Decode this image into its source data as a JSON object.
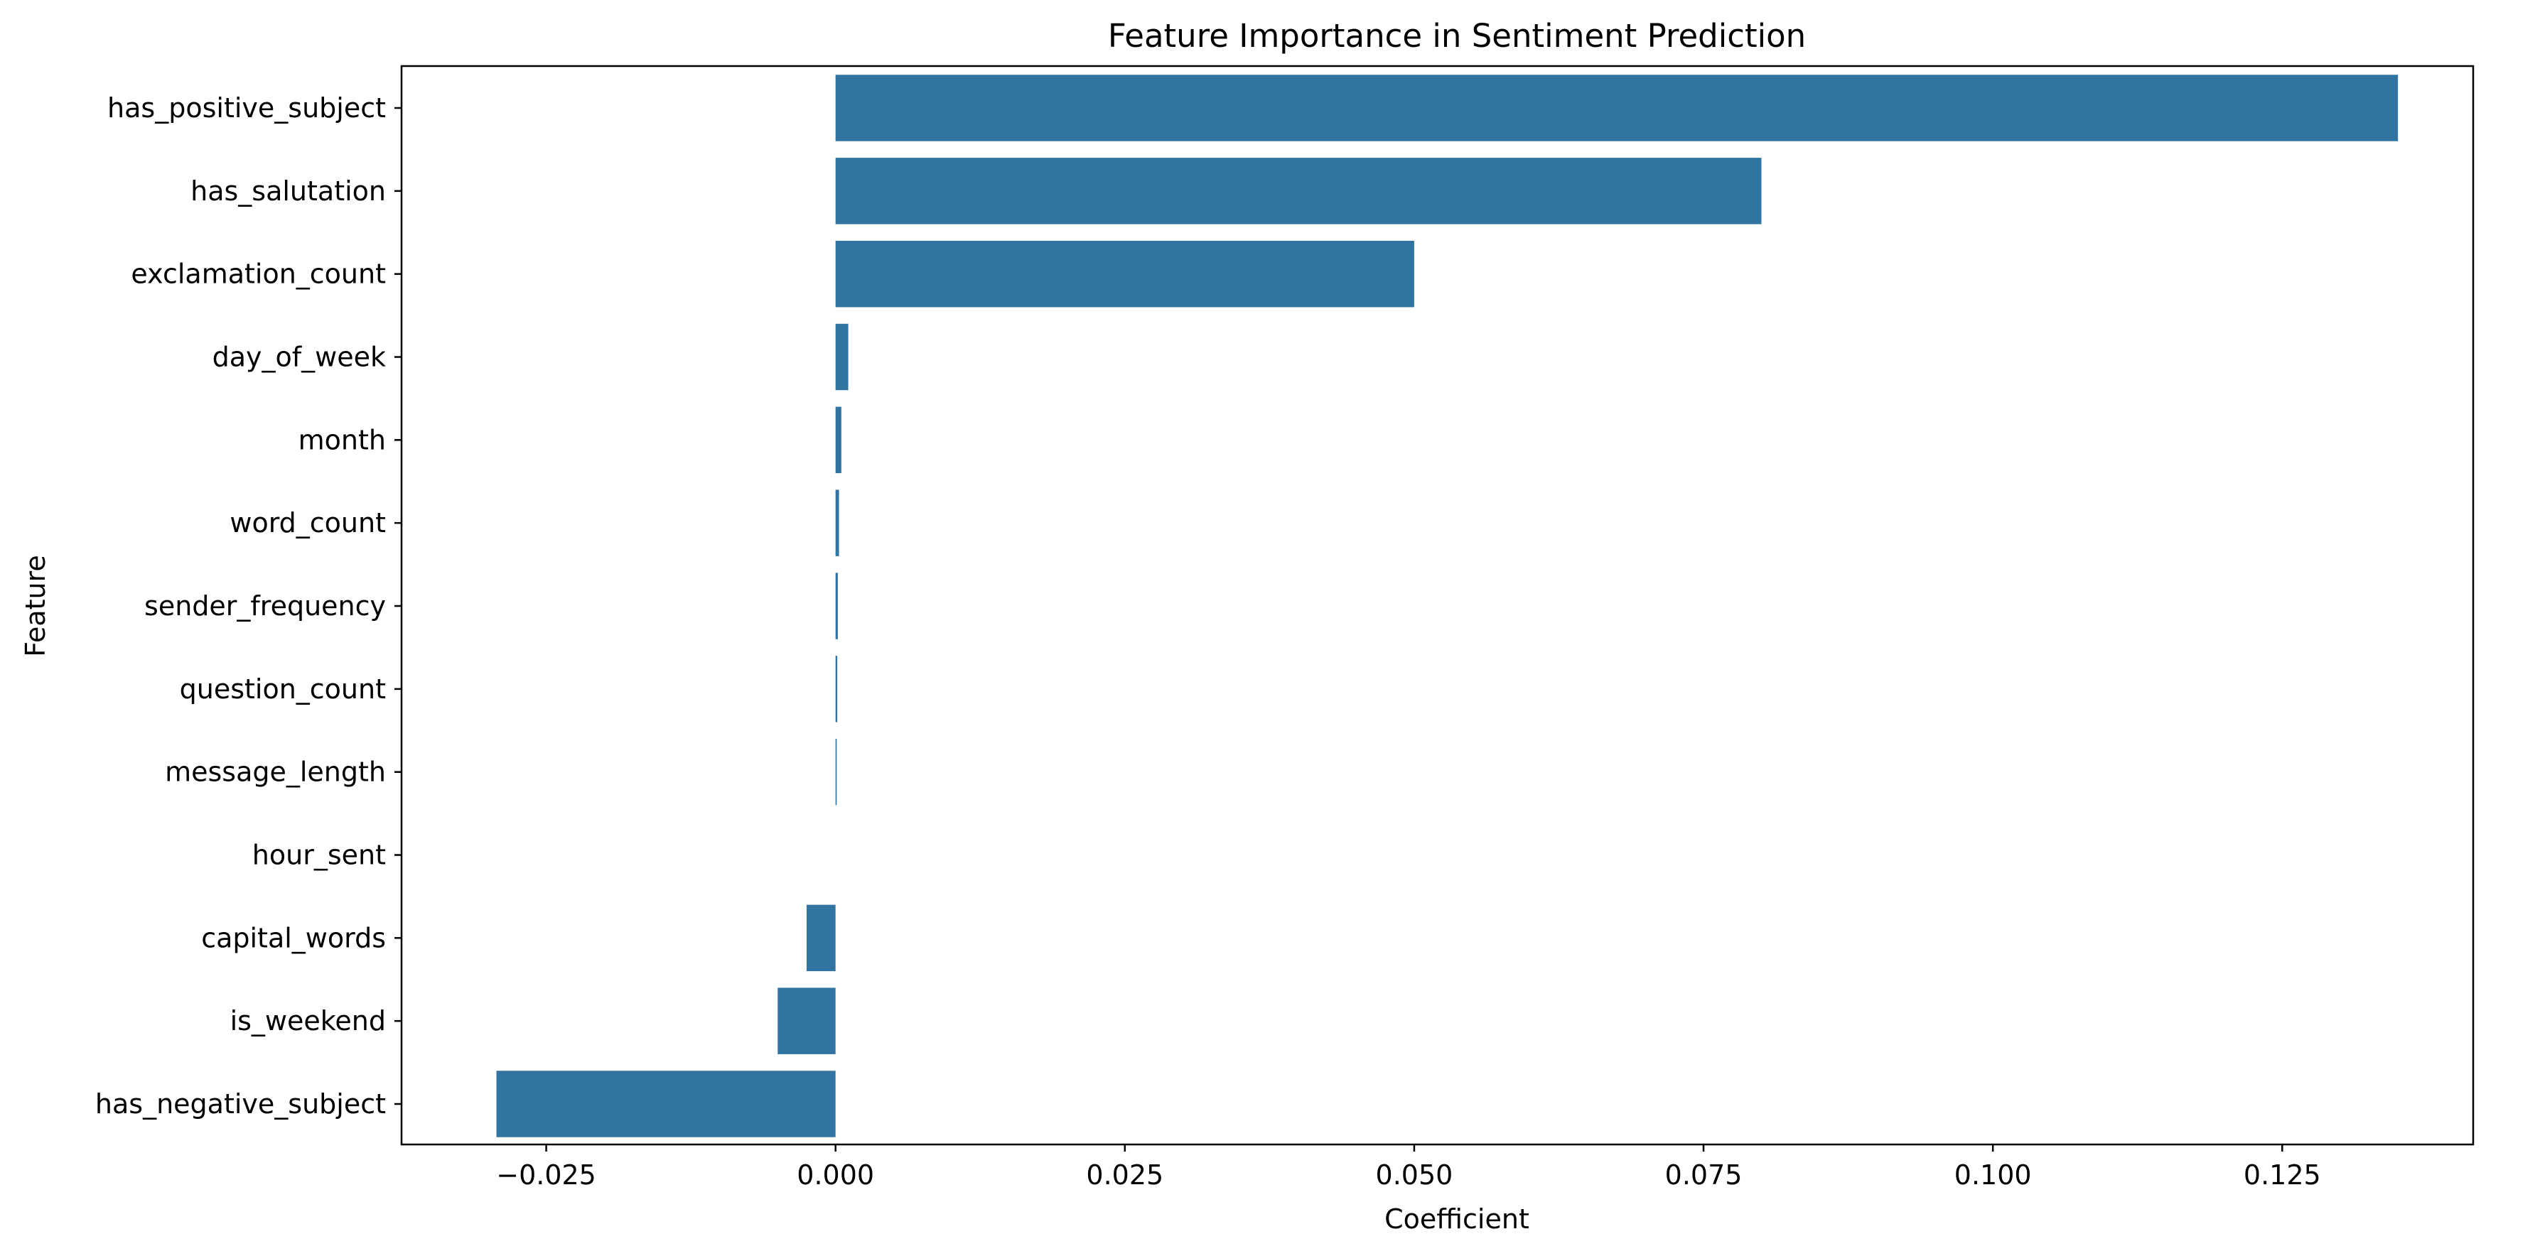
{
  "chart_data": {
    "type": "bar",
    "orientation": "horizontal",
    "title": "Feature Importance in Sentiment Prediction",
    "xlabel": "Coefficient",
    "ylabel": "Feature",
    "categories": [
      "has_positive_subject",
      "has_salutation",
      "exclamation_count",
      "day_of_week",
      "month",
      "word_count",
      "sender_frequency",
      "question_count",
      "message_length",
      "hour_sent",
      "capital_words",
      "is_weekend",
      "has_negative_subject"
    ],
    "values": [
      0.135,
      0.08,
      0.05,
      0.0011,
      0.0005,
      0.0003,
      0.0002,
      0.00015,
      0.0001,
      0.0,
      -0.0025,
      -0.005,
      -0.0293
    ],
    "xlim": [
      -0.0375,
      0.1415
    ],
    "xticks": [
      -0.025,
      0.0,
      0.025,
      0.05,
      0.075,
      0.1,
      0.125
    ],
    "xtick_labels": [
      "−0.025",
      "0.000",
      "0.025",
      "0.050",
      "0.075",
      "0.100",
      "0.125"
    ],
    "bar_color": "#3274a1",
    "grid": false,
    "legend": false
  }
}
